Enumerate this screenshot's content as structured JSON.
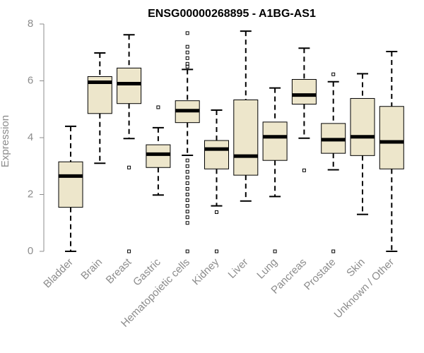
{
  "chart_data": {
    "type": "boxplot",
    "title": "ENSG00000268895 - A1BG-AS1",
    "xlabel": "",
    "ylabel": "Expression",
    "ylim": [
      0,
      8
    ],
    "yticks": [
      0,
      2,
      4,
      6,
      8
    ],
    "box_color": "#ede6cb",
    "categories": [
      "Bladder",
      "Brain",
      "Breast",
      "Gastric",
      "Hematopoietic cells",
      "Kidney",
      "Liver",
      "Lung",
      "Pancreas",
      "Prostate",
      "Skin",
      "Unknown / Other"
    ],
    "series": [
      {
        "name": "Bladder",
        "min": 0.0,
        "q1": 1.55,
        "median": 2.65,
        "q3": 3.15,
        "max": 4.4,
        "outliers": []
      },
      {
        "name": "Brain",
        "min": 3.1,
        "q1": 4.85,
        "median": 5.95,
        "q3": 6.15,
        "max": 6.98,
        "outliers": []
      },
      {
        "name": "Breast",
        "min": 3.97,
        "q1": 5.2,
        "median": 5.9,
        "q3": 6.45,
        "max": 7.62,
        "outliers": [
          2.95,
          0.0
        ]
      },
      {
        "name": "Gastric",
        "min": 1.98,
        "q1": 2.95,
        "median": 3.42,
        "q3": 3.75,
        "max": 4.35,
        "outliers": [
          5.07
        ]
      },
      {
        "name": "Hematopoietic cells",
        "min": 3.38,
        "q1": 4.53,
        "median": 4.95,
        "q3": 5.3,
        "max": 6.4,
        "outliers": [
          7.68,
          7.2,
          7.0,
          6.8,
          6.6,
          6.5,
          3.2,
          3.0,
          2.8,
          2.6,
          2.4,
          2.2,
          2.0,
          1.8,
          1.6,
          1.4,
          1.2,
          1.0,
          0.0
        ]
      },
      {
        "name": "Kidney",
        "min": 1.6,
        "q1": 2.9,
        "median": 3.6,
        "q3": 3.9,
        "max": 4.97,
        "outliers": [
          1.38,
          0.0
        ]
      },
      {
        "name": "Liver",
        "min": 1.77,
        "q1": 2.68,
        "median": 3.35,
        "q3": 5.33,
        "max": 7.75,
        "outliers": []
      },
      {
        "name": "Lung",
        "min": 1.93,
        "q1": 3.2,
        "median": 4.03,
        "q3": 4.55,
        "max": 5.75,
        "outliers": [
          0.0
        ]
      },
      {
        "name": "Pancreas",
        "min": 3.98,
        "q1": 5.18,
        "median": 5.5,
        "q3": 6.05,
        "max": 7.15,
        "outliers": [
          2.85
        ]
      },
      {
        "name": "Prostate",
        "min": 2.87,
        "q1": 3.45,
        "median": 3.93,
        "q3": 4.5,
        "max": 5.97,
        "outliers": [
          6.23,
          0.0
        ]
      },
      {
        "name": "Skin",
        "min": 1.3,
        "q1": 3.37,
        "median": 4.03,
        "q3": 5.38,
        "max": 6.25,
        "outliers": []
      },
      {
        "name": "Unknown / Other",
        "min": 0.0,
        "q1": 2.9,
        "median": 3.85,
        "q3": 5.1,
        "max": 7.03,
        "outliers": []
      }
    ]
  }
}
